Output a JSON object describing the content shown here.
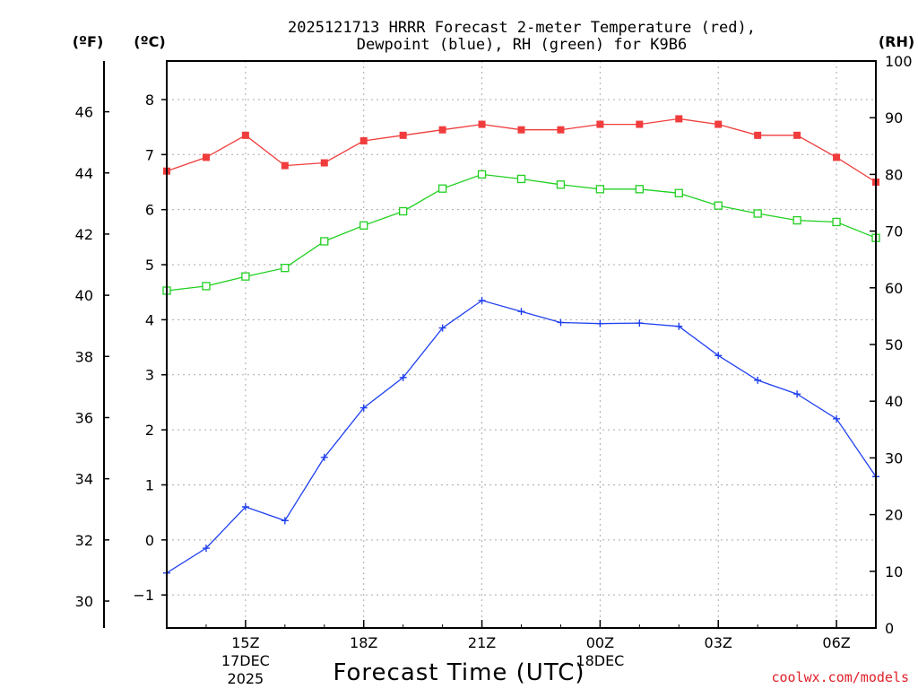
{
  "chart_data": {
    "type": "line",
    "title_line1": "2025121713 HRRR Forecast 2-meter Temperature (red),",
    "title_line2": "Dewpoint (blue), RH (green) for K9B6",
    "unit_f": "(ºF)",
    "unit_c": "(ºC)",
    "unit_rh": "(RH)",
    "xlabel": "Forecast Time (UTC)",
    "credit": "coolwx.com/models",
    "x_hours": [
      13,
      14,
      15,
      16,
      17,
      18,
      19,
      20,
      21,
      22,
      23,
      24,
      25,
      26,
      27,
      28,
      29,
      30,
      31
    ],
    "x_ticks": [
      {
        "hour": 15,
        "label": "15Z",
        "sub1": "17DEC",
        "sub2": "2025"
      },
      {
        "hour": 18,
        "label": "18Z"
      },
      {
        "hour": 21,
        "label": "21Z"
      },
      {
        "hour": 24,
        "label": "00Z",
        "sub1": "18DEC"
      },
      {
        "hour": 27,
        "label": "03Z"
      },
      {
        "hour": 30,
        "label": "06Z"
      }
    ],
    "x_grid_hours": [
      15,
      18,
      21,
      24,
      27,
      30
    ],
    "xlim": [
      13,
      31
    ],
    "celsius_ylim": [
      -1.6,
      8.7
    ],
    "celsius_ticks": [
      -1,
      0,
      1,
      2,
      3,
      4,
      5,
      6,
      7,
      8
    ],
    "celsius_tick_labels": [
      "−1",
      "0",
      "1",
      "2",
      "3",
      "4",
      "5",
      "6",
      "7",
      "8"
    ],
    "fahrenheit_ticks": [
      30,
      32,
      34,
      36,
      38,
      40,
      42,
      44,
      46
    ],
    "fahrenheit_tick_labels": [
      "30",
      "32",
      "34",
      "36",
      "38",
      "40",
      "42",
      "44",
      "46"
    ],
    "rh_ylim": [
      0,
      100
    ],
    "rh_ticks": [
      0,
      10,
      20,
      30,
      40,
      50,
      60,
      70,
      80,
      90,
      100
    ],
    "rh_tick_labels": [
      "0",
      "10",
      "20",
      "30",
      "40",
      "50",
      "60",
      "70",
      "80",
      "90",
      "100"
    ],
    "series": [
      {
        "name": "2-meter Temperature",
        "axis": "celsius",
        "color": "#f03c3c",
        "marker": "filled-square",
        "values": [
          6.7,
          6.95,
          7.35,
          6.8,
          6.85,
          7.25,
          7.35,
          7.45,
          7.55,
          7.45,
          7.45,
          7.55,
          7.55,
          7.65,
          7.55,
          7.35,
          7.35,
          6.95,
          6.5
        ]
      },
      {
        "name": "Dewpoint",
        "axis": "celsius",
        "color": "#2040f0",
        "marker": "plus",
        "values": [
          -0.6,
          -0.15,
          0.6,
          0.35,
          1.5,
          2.4,
          2.95,
          3.85,
          4.35,
          4.15,
          3.95,
          3.93,
          3.94,
          3.88,
          3.35,
          2.9,
          2.65,
          2.2,
          1.15
        ]
      },
      {
        "name": "Relative Humidity",
        "axis": "rh",
        "color": "#20d020",
        "marker": "open-square",
        "values": [
          59.5,
          60.3,
          62.0,
          63.5,
          68.2,
          71.0,
          73.5,
          77.5,
          80.0,
          79.2,
          78.2,
          77.4,
          77.4,
          76.7,
          74.5,
          73.1,
          71.9,
          71.6,
          68.8
        ]
      }
    ]
  }
}
